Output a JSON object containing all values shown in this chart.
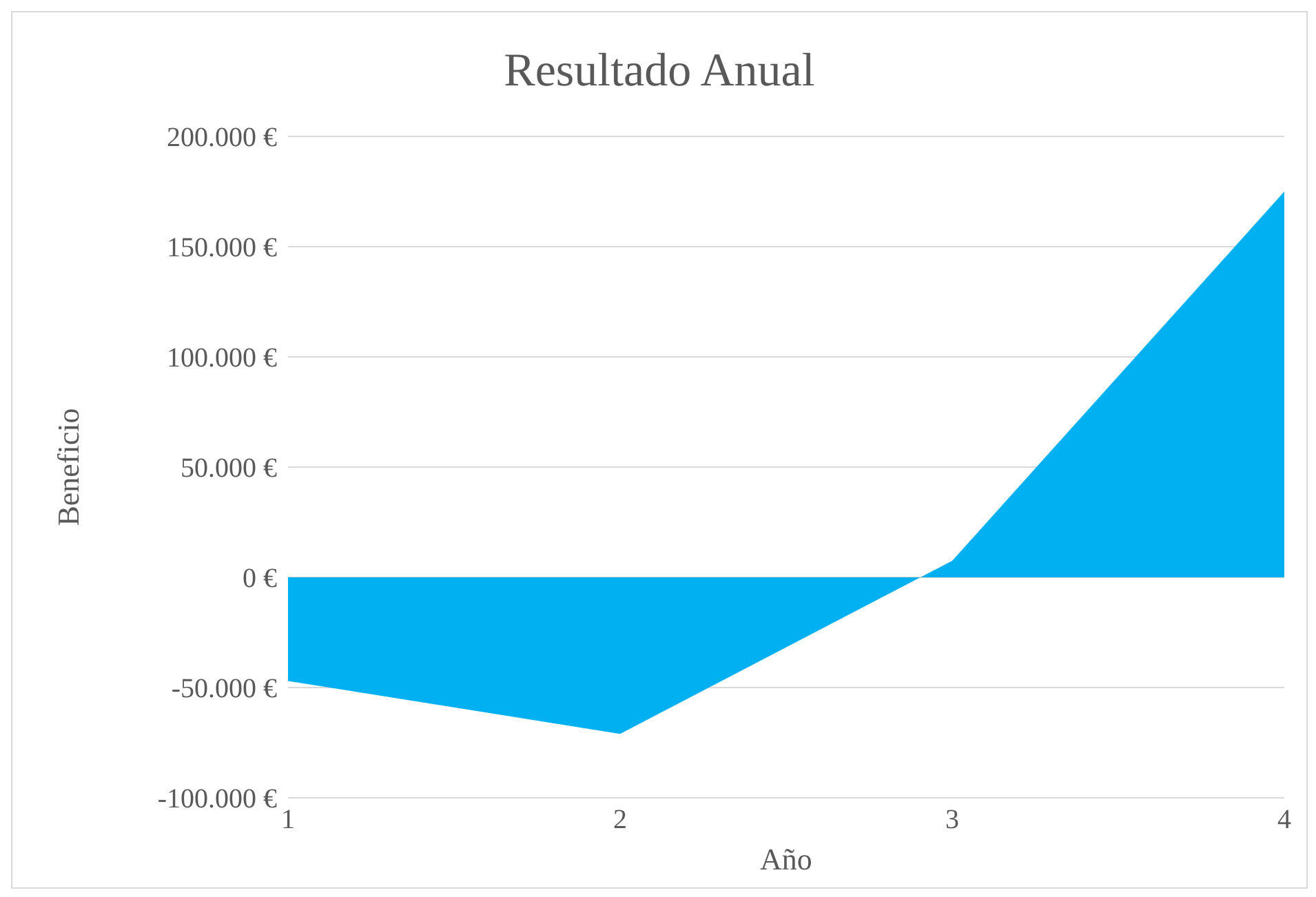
{
  "chart_data": {
    "type": "area",
    "title": "Resultado Anual",
    "xlabel": "Año",
    "ylabel": "Beneficio",
    "categories": [
      "1",
      "2",
      "3",
      "4"
    ],
    "series": [
      {
        "color": "#00b0f0",
        "values": [
          -47000,
          -71000,
          7500,
          175000
        ]
      }
    ],
    "ylim": [
      -100000,
      200000
    ],
    "yticks": [
      {
        "value": -100000,
        "label": "-100.000 €"
      },
      {
        "value": -50000,
        "label": "-50.000 €"
      },
      {
        "value": 0,
        "label": "0 €"
      },
      {
        "value": 50000,
        "label": "50.000 €"
      },
      {
        "value": 100000,
        "label": "100.000 €"
      },
      {
        "value": 150000,
        "label": "150.000 €"
      },
      {
        "value": 200000,
        "label": "200.000 €"
      }
    ],
    "grid": "y",
    "legend": false
  }
}
